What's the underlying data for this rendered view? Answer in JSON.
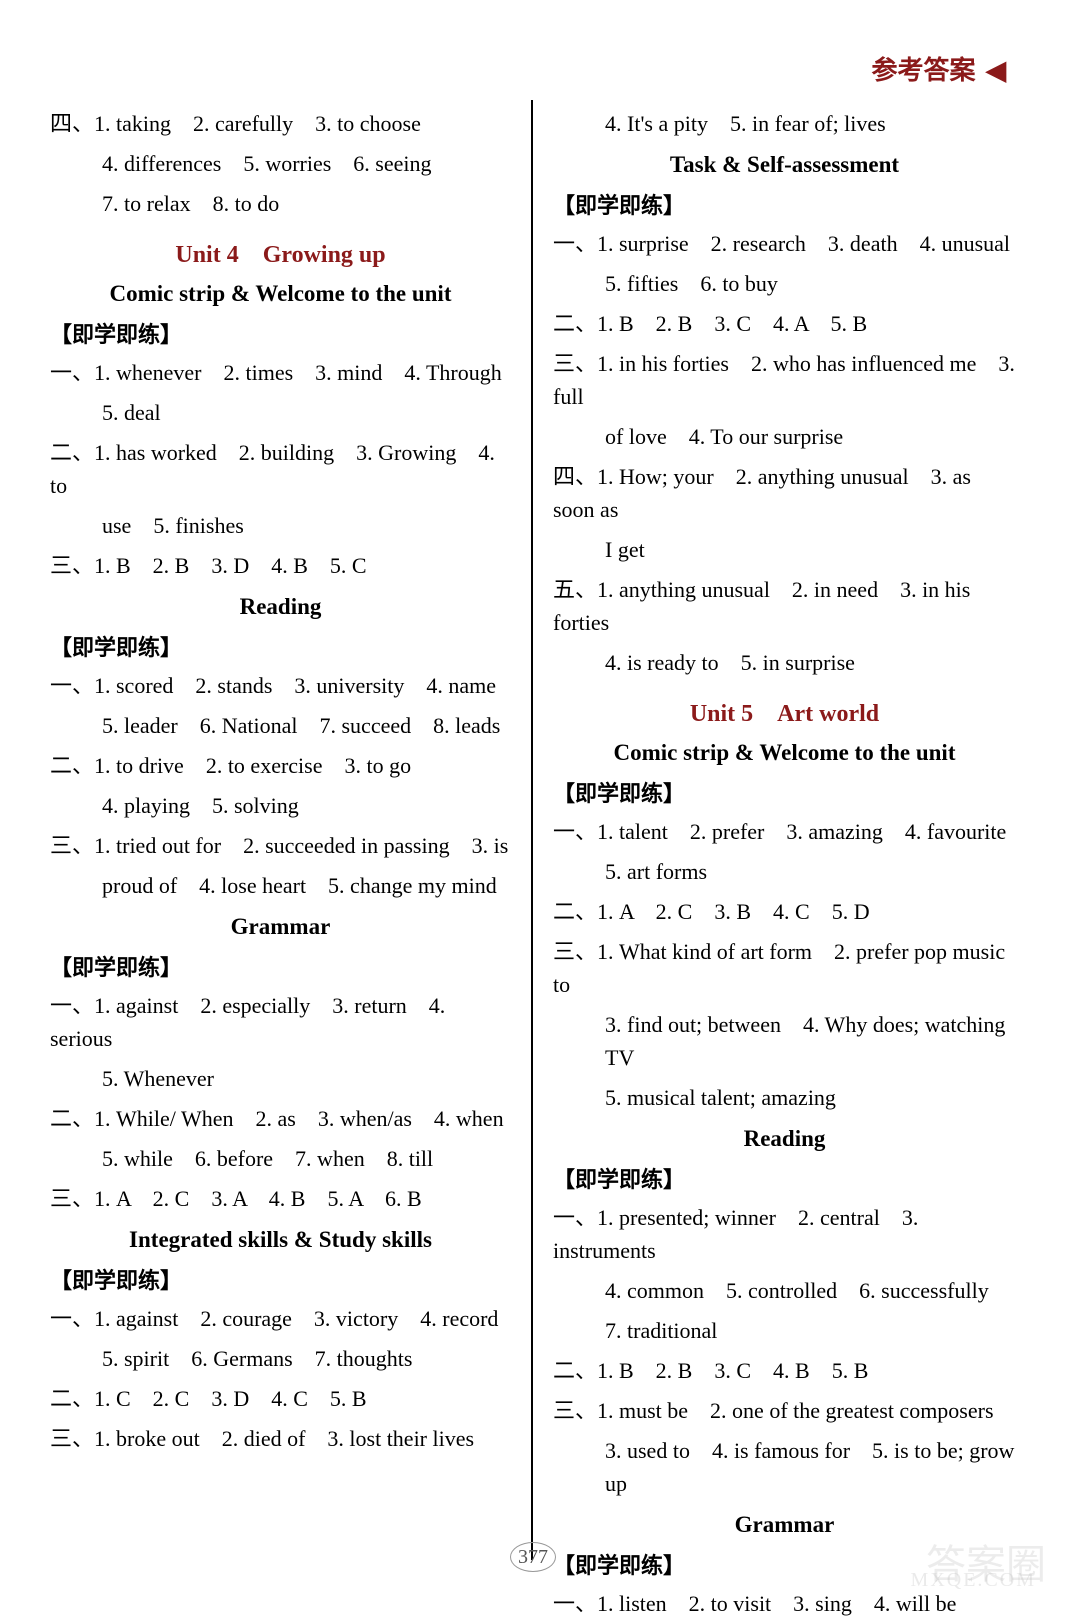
{
  "header": {
    "label": "参考答案",
    "arrow": "◀"
  },
  "pageNumber": "377",
  "watermark": "答案圈",
  "mxq": "MXQE.COM",
  "left": {
    "l1": "四、1. taking　2. carefully　3. to choose",
    "l2": "4. differences　5. worries　6. seeing",
    "l3": "7. to relax　8. to do",
    "unit4": "Unit 4　Growing up",
    "sec1": "Comic strip & Welcome to the unit",
    "sub1": "【即学即练】",
    "l4": "一、1. whenever　2. times　3. mind　4. Through",
    "l5": "5. deal",
    "l6": "二、1. has worked　2. building　3. Growing　4. to",
    "l7": "use　5. finishes",
    "l8": "三、1. B　2. B　3. D　4. B　5. C",
    "sec2": "Reading",
    "sub2": "【即学即练】",
    "l9": "一、1. scored　2. stands　3. university　4. name",
    "l10": "5. leader　6. National　7. succeed　8. leads",
    "l11": "二、1. to drive　2. to exercise　3. to go",
    "l12": "4. playing　5. solving",
    "l13": "三、1. tried out for　2. succeeded in passing　3. is",
    "l14": "proud of　4. lose heart　5. change my mind",
    "sec3": "Grammar",
    "sub3": "【即学即练】",
    "l15": "一、1. against　2. especially　3. return　4. serious",
    "l16": "5. Whenever",
    "l17": "二、1. While/ When　2. as　3. when/as　4. when",
    "l18": "5. while　6. before　7. when　8. till",
    "l19": "三、1. A　2. C　3. A　4. B　5. A　6. B",
    "sec4": "Integrated skills & Study skills",
    "sub4": "【即学即练】",
    "l20": "一、1. against　2. courage　3. victory　4. record",
    "l21": "5. spirit　6. Germans　7. thoughts",
    "l22": "二、1. C　2. C　3. D　4. C　5. B",
    "l23": "三、1. broke out　2. died of　3. lost their lives"
  },
  "right": {
    "r1": "4. It's a pity　5. in fear of; lives",
    "sec1": "Task & Self-assessment",
    "sub1": "【即学即练】",
    "r2": "一、1. surprise　2. research　3. death　4. unusual",
    "r3": "5. fifties　6. to buy",
    "r4": "二、1. B　2. B　3. C　4. A　5. B",
    "r5": "三、1. in his forties　2. who has influenced me　3. full",
    "r6": "of love　4. To our surprise",
    "r7": "四、1. How; your　2. anything unusual　3. as soon as",
    "r8": "I get",
    "r9": "五、1. anything unusual　2. in need　3. in his forties",
    "r10": "4. is ready to　5. in surprise",
    "unit5": "Unit 5　Art world",
    "sec2": "Comic strip & Welcome to the unit",
    "sub2": "【即学即练】",
    "r11": "一、1. talent　2. prefer　3. amazing　4. favourite",
    "r12": "5. art forms",
    "r13": "二、1. A　2. C　3. B　4. C　5. D",
    "r14": "三、1. What kind of art form　2. prefer pop music to",
    "r15": "3. find out; between　4. Why does; watching TV",
    "r16": "5. musical talent; amazing",
    "sec3": "Reading",
    "sub3": "【即学即练】",
    "r17": "一、1. presented; winner　2. central　3. instruments",
    "r18": "4. common　5. controlled　6. successfully",
    "r19": "7. traditional",
    "r20": "二、1. B　2. B　3. C　4. B　5. B",
    "r21": "三、1. must be　2. one of the greatest composers",
    "r22": "3. used to　4. is famous for　5. is to be; grow up",
    "sec4": "Grammar",
    "sub4": "【即学即练】",
    "r23": "一、1. listen　2. to visit　3. sing　4. will be"
  }
}
